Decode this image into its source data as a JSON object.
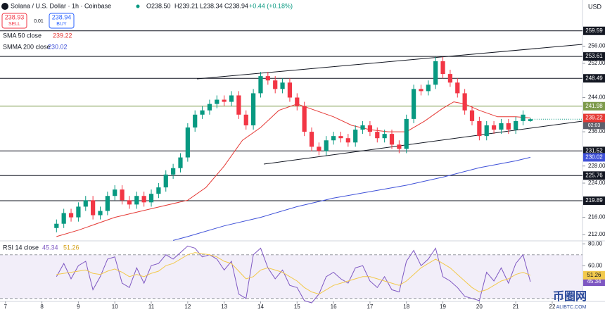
{
  "header": {
    "symbol": "Solana / U.S. Dollar · 1h · Coinbase",
    "ohlc": [
      "O238.50",
      "H239.21",
      "L238.34",
      "C238.94"
    ],
    "change": "+0.44 (+0.18%)",
    "sell_price": "238.93",
    "sell": "SELL",
    "spread": "0.01",
    "buy_price": "238.94",
    "buy": "BUY",
    "currency": "USD",
    "countdown": "02:03",
    "watermark": "币圈网",
    "watermark_site": "ALIBTC.COM"
  },
  "chart_data": [
    {
      "type": "candlestick",
      "up_color": "#089981",
      "down_color": "#f23645",
      "x": [
        8.4,
        8.6,
        8.8,
        9,
        9.2,
        9.4,
        9.6,
        9.8,
        10,
        10.2,
        10.4,
        10.6,
        10.8,
        11,
        11.2,
        11.4,
        11.6,
        11.8,
        12,
        12.2,
        12.4,
        12.6,
        12.8,
        13,
        13.2,
        13.4,
        13.6,
        13.8,
        14,
        14.2,
        14.4,
        14.6,
        14.8,
        15,
        15.2,
        15.4,
        15.6,
        15.8,
        16,
        16.2,
        16.4,
        16.6,
        16.8,
        17,
        17.2,
        17.4,
        17.6,
        17.8,
        18,
        18.2,
        18.4,
        18.6,
        18.8,
        19,
        19.2,
        19.4,
        19.6,
        19.8,
        20,
        20.2,
        20.4,
        20.6,
        20.8,
        21,
        21.2,
        21.4
      ],
      "open": [
        213.5,
        214.5,
        217,
        216,
        218.5,
        220,
        216.5,
        217.5,
        221,
        222.5,
        220,
        219,
        221,
        219.5,
        221.5,
        223,
        226,
        227.5,
        230,
        237,
        240,
        241,
        242.5,
        243.5,
        243,
        244.5,
        240,
        237.5,
        245,
        249,
        248,
        246,
        247.5,
        244,
        242,
        236,
        232.5,
        231.5,
        234,
        235,
        234.5,
        233.5,
        236.5,
        237.5,
        236,
        234.5,
        235.5,
        233,
        232,
        239,
        246,
        245.5,
        247,
        252.5,
        249.5,
        247.5,
        245,
        241,
        238.5,
        235,
        237.5,
        236.5,
        238,
        236.5,
        238.5,
        238.5
      ],
      "high": [
        215.5,
        218,
        218,
        219.5,
        221,
        221,
        218.5,
        222,
        223.5,
        223.5,
        221,
        222,
        222,
        222.5,
        224,
        227,
        228.5,
        231,
        238,
        241,
        242,
        243.5,
        244.5,
        244.5,
        245.5,
        245.5,
        241,
        246,
        250,
        250,
        249,
        248.5,
        248.5,
        245,
        243,
        237,
        233.5,
        235,
        236,
        236,
        235.5,
        237.5,
        238.5,
        238.5,
        237,
        236.5,
        236.5,
        234,
        240,
        247,
        247,
        248,
        253.5,
        253.5,
        250.5,
        248.5,
        246,
        242,
        239.5,
        238.5,
        238.5,
        239,
        239,
        239.5,
        241,
        239.21
      ],
      "low": [
        212.5,
        213.5,
        215,
        215,
        217.5,
        215.5,
        215.5,
        216.5,
        220,
        219,
        218,
        218,
        218.5,
        218.5,
        220.5,
        222,
        225,
        226.5,
        229,
        236,
        239,
        240,
        241.5,
        242,
        242,
        239,
        236.5,
        236.5,
        244,
        247,
        245,
        245,
        243,
        241,
        235,
        231.5,
        230.5,
        230.5,
        233,
        233.5,
        232.5,
        232.5,
        235.5,
        235,
        233.5,
        233.5,
        232,
        231,
        231,
        238,
        244.5,
        244.5,
        246,
        248.5,
        246.5,
        244,
        240,
        237.5,
        234,
        234,
        235.5,
        235.5,
        235.5,
        235.5,
        237.5,
        238.34
      ],
      "close": [
        214.5,
        217,
        216,
        218.5,
        220,
        216.5,
        217.5,
        221,
        222.5,
        220,
        219,
        221,
        219.5,
        221.5,
        223,
        226,
        227.5,
        230,
        237,
        240,
        241,
        242.5,
        243.5,
        243,
        244.5,
        240,
        237.5,
        245,
        249,
        248,
        246,
        247.5,
        244,
        242,
        236,
        232.5,
        231.5,
        234,
        235,
        234.5,
        233.5,
        236.5,
        237.5,
        236,
        234.5,
        235.5,
        233,
        232,
        239,
        246,
        245.5,
        247,
        252.5,
        249.5,
        247.5,
        245,
        241,
        238.5,
        235,
        237.5,
        236.5,
        238,
        236.5,
        238.5,
        240,
        238.94
      ],
      "series": [
        {
          "name": "SMA 50 close",
          "color": "#e53935",
          "x": [
            8.4,
            9,
            10,
            11,
            12,
            12.5,
            13,
            13.5,
            14,
            14.5,
            15,
            15.5,
            16,
            16.5,
            17,
            17.5,
            18,
            18.5,
            19,
            19.3,
            19.6,
            20,
            20.5,
            21,
            21.4
          ],
          "values": [
            211.5,
            213,
            216,
            218,
            220,
            223,
            228,
            234,
            237,
            241,
            242.5,
            241,
            239.5,
            237.5,
            236.5,
            236,
            236,
            238.5,
            241.5,
            243,
            242.5,
            241,
            239.5,
            239.5,
            239.22
          ]
        },
        {
          "name": "SMMA 200 close",
          "color": "#3f51d8",
          "x": [
            11.6,
            12,
            13,
            14,
            15,
            16,
            17,
            18,
            19,
            20,
            21,
            21.4
          ],
          "values": [
            210.6,
            211.5,
            214,
            216,
            218.5,
            220.5,
            222,
            223.5,
            225.4,
            227.6,
            229.2,
            230.02
          ]
        }
      ],
      "levels": [
        {
          "value": 259.59,
          "color": "#131722"
        },
        {
          "value": 253.61,
          "color": "#131722"
        },
        {
          "value": 248.49,
          "color": "#131722"
        },
        {
          "value": 241.98,
          "color": "#7d9a4b"
        },
        {
          "value": 231.52,
          "color": "#131722"
        },
        {
          "value": 225.76,
          "color": "#131722"
        },
        {
          "value": 219.89,
          "color": "#131722"
        }
      ],
      "xlim": [
        6.85,
        22.83
      ],
      "xticks": [
        7,
        8,
        9,
        10,
        11,
        12,
        13,
        14,
        15,
        16,
        17,
        18,
        19,
        20,
        21,
        22
      ],
      "ylim": [
        210.5,
        266.8
      ],
      "yticks": [
        {
          "value": 256,
          "label": "256.00"
        },
        {
          "value": 252,
          "label": "252.00"
        },
        {
          "value": 244,
          "label": "244.00"
        },
        {
          "value": 236,
          "label": "236.00"
        },
        {
          "value": 228,
          "label": "228.00"
        },
        {
          "value": 224,
          "label": "224.00"
        },
        {
          "value": 216,
          "label": "216.00"
        },
        {
          "value": 212,
          "label": "212.00"
        }
      ],
      "grid": false
    },
    {
      "type": "line",
      "title": "RSI 14 close",
      "band": [
        30,
        70
      ],
      "band_color": "#7e57c2",
      "x": [
        8.4,
        8.6,
        8.8,
        9,
        9.2,
        9.4,
        9.6,
        9.8,
        10,
        10.2,
        10.4,
        10.6,
        10.8,
        11,
        11.2,
        11.4,
        11.6,
        11.8,
        12,
        12.2,
        12.4,
        12.6,
        12.8,
        13,
        13.2,
        13.4,
        13.6,
        13.8,
        14,
        14.2,
        14.4,
        14.6,
        14.8,
        15,
        15.2,
        15.4,
        15.6,
        15.8,
        16,
        16.2,
        16.4,
        16.6,
        16.8,
        17,
        17.2,
        17.4,
        17.6,
        17.8,
        18,
        18.2,
        18.4,
        18.6,
        18.8,
        19,
        19.2,
        19.4,
        19.6,
        19.8,
        20,
        20.2,
        20.4,
        20.6,
        20.8,
        21,
        21.2,
        21.4
      ],
      "series": [
        {
          "color": "#7e57c2",
          "values": [
            50,
            62,
            48,
            60,
            64,
            38,
            50,
            66,
            68,
            44,
            40,
            58,
            44,
            60,
            62,
            70,
            66,
            72,
            78,
            76,
            68,
            70,
            66,
            56,
            64,
            34,
            30,
            70,
            76,
            58,
            48,
            56,
            42,
            40,
            28,
            26,
            34,
            50,
            54,
            48,
            44,
            58,
            60,
            46,
            40,
            50,
            38,
            36,
            64,
            74,
            60,
            66,
            76,
            50,
            46,
            40,
            32,
            30,
            28,
            54,
            46,
            58,
            44,
            62,
            70,
            45.34
          ]
        },
        {
          "color": "#f2c94c",
          "values": [
            52,
            53,
            54,
            55,
            56,
            53,
            52,
            55,
            57,
            54,
            50,
            52,
            50,
            53,
            55,
            60,
            62,
            66,
            70,
            72,
            71,
            70,
            68,
            64,
            62,
            55,
            48,
            50,
            56,
            58,
            56,
            54,
            50,
            46,
            40,
            36,
            34,
            38,
            42,
            44,
            46,
            48,
            50,
            50,
            48,
            46,
            44,
            42,
            46,
            52,
            58,
            62,
            66,
            62,
            58,
            52,
            46,
            40,
            36,
            38,
            42,
            46,
            48,
            52,
            54,
            51.26
          ]
        }
      ],
      "ylim": [
        27.3,
        82.7
      ],
      "yticks": [
        {
          "value": 80,
          "label": "80.00"
        },
        {
          "value": 60,
          "label": "60.00"
        }
      ],
      "grid": false
    }
  ]
}
